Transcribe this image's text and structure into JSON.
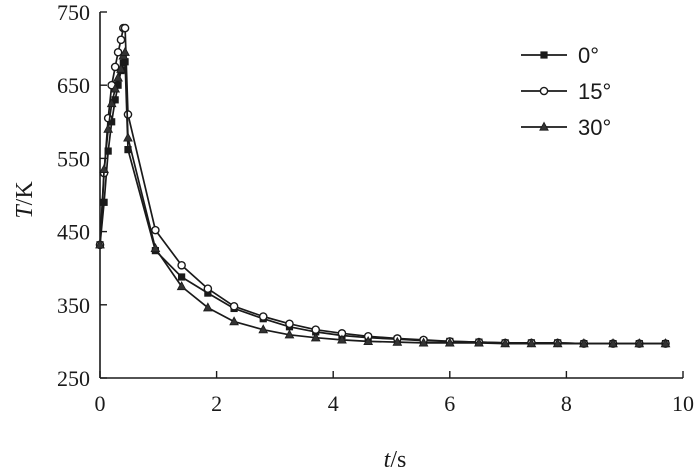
{
  "chart_data": {
    "type": "line",
    "xlabel_italic": "t",
    "xlabel_unit": "/s",
    "ylabel_italic": "T",
    "ylabel_unit": "/K",
    "xlim": [
      0,
      10
    ],
    "ylim": [
      250,
      750
    ],
    "xticks": [
      "0",
      "2",
      "4",
      "6",
      "8",
      "10"
    ],
    "yticks": [
      "250",
      "350",
      "450",
      "550",
      "650",
      "750"
    ],
    "legend_position": "top-right",
    "grid": false,
    "series": [
      {
        "name": "0°",
        "marker": "filled-square",
        "x": [
          0,
          0.07,
          0.14,
          0.2,
          0.26,
          0.31,
          0.36,
          0.4,
          0.43,
          0.48,
          0.95,
          1.4,
          1.85,
          2.3,
          2.8,
          3.25,
          3.7,
          4.15,
          4.6,
          5.1,
          5.55,
          6.0,
          6.5,
          6.95,
          7.4,
          7.85,
          8.3,
          8.8,
          9.25,
          9.7
        ],
        "y": [
          432,
          490,
          560,
          600,
          630,
          650,
          670,
          680,
          682,
          562,
          424,
          388,
          366,
          345,
          331,
          320,
          313,
          308,
          305,
          303,
          301,
          300,
          299,
          298,
          298,
          298,
          297,
          297,
          297,
          297
        ]
      },
      {
        "name": "15°",
        "marker": "open-circle",
        "x": [
          0,
          0.07,
          0.14,
          0.2,
          0.26,
          0.31,
          0.36,
          0.4,
          0.43,
          0.48,
          0.95,
          1.4,
          1.85,
          2.3,
          2.8,
          3.25,
          3.7,
          4.15,
          4.6,
          5.1,
          5.55,
          6.0,
          6.5,
          6.95,
          7.4,
          7.85,
          8.3,
          8.8,
          9.25,
          9.7
        ],
        "y": [
          432,
          530,
          605,
          650,
          675,
          695,
          712,
          728,
          728,
          610,
          452,
          404,
          372,
          348,
          334,
          324,
          316,
          311,
          307,
          304,
          302,
          300,
          299,
          298,
          298,
          298,
          297,
          297,
          297,
          297
        ]
      },
      {
        "name": "30°",
        "marker": "filled-triangle",
        "x": [
          0,
          0.07,
          0.14,
          0.2,
          0.26,
          0.31,
          0.36,
          0.4,
          0.43,
          0.48,
          0.95,
          1.4,
          1.85,
          2.3,
          2.8,
          3.25,
          3.7,
          4.15,
          4.6,
          5.1,
          5.55,
          6.0,
          6.5,
          6.95,
          7.4,
          7.85,
          8.3,
          8.8,
          9.25,
          9.7
        ],
        "y": [
          432,
          535,
          590,
          625,
          645,
          660,
          672,
          690,
          695,
          578,
          427,
          375,
          346,
          327,
          316,
          309,
          305,
          302,
          300,
          299,
          298,
          298,
          298,
          297,
          297,
          297,
          297,
          297,
          297,
          297
        ]
      }
    ]
  }
}
